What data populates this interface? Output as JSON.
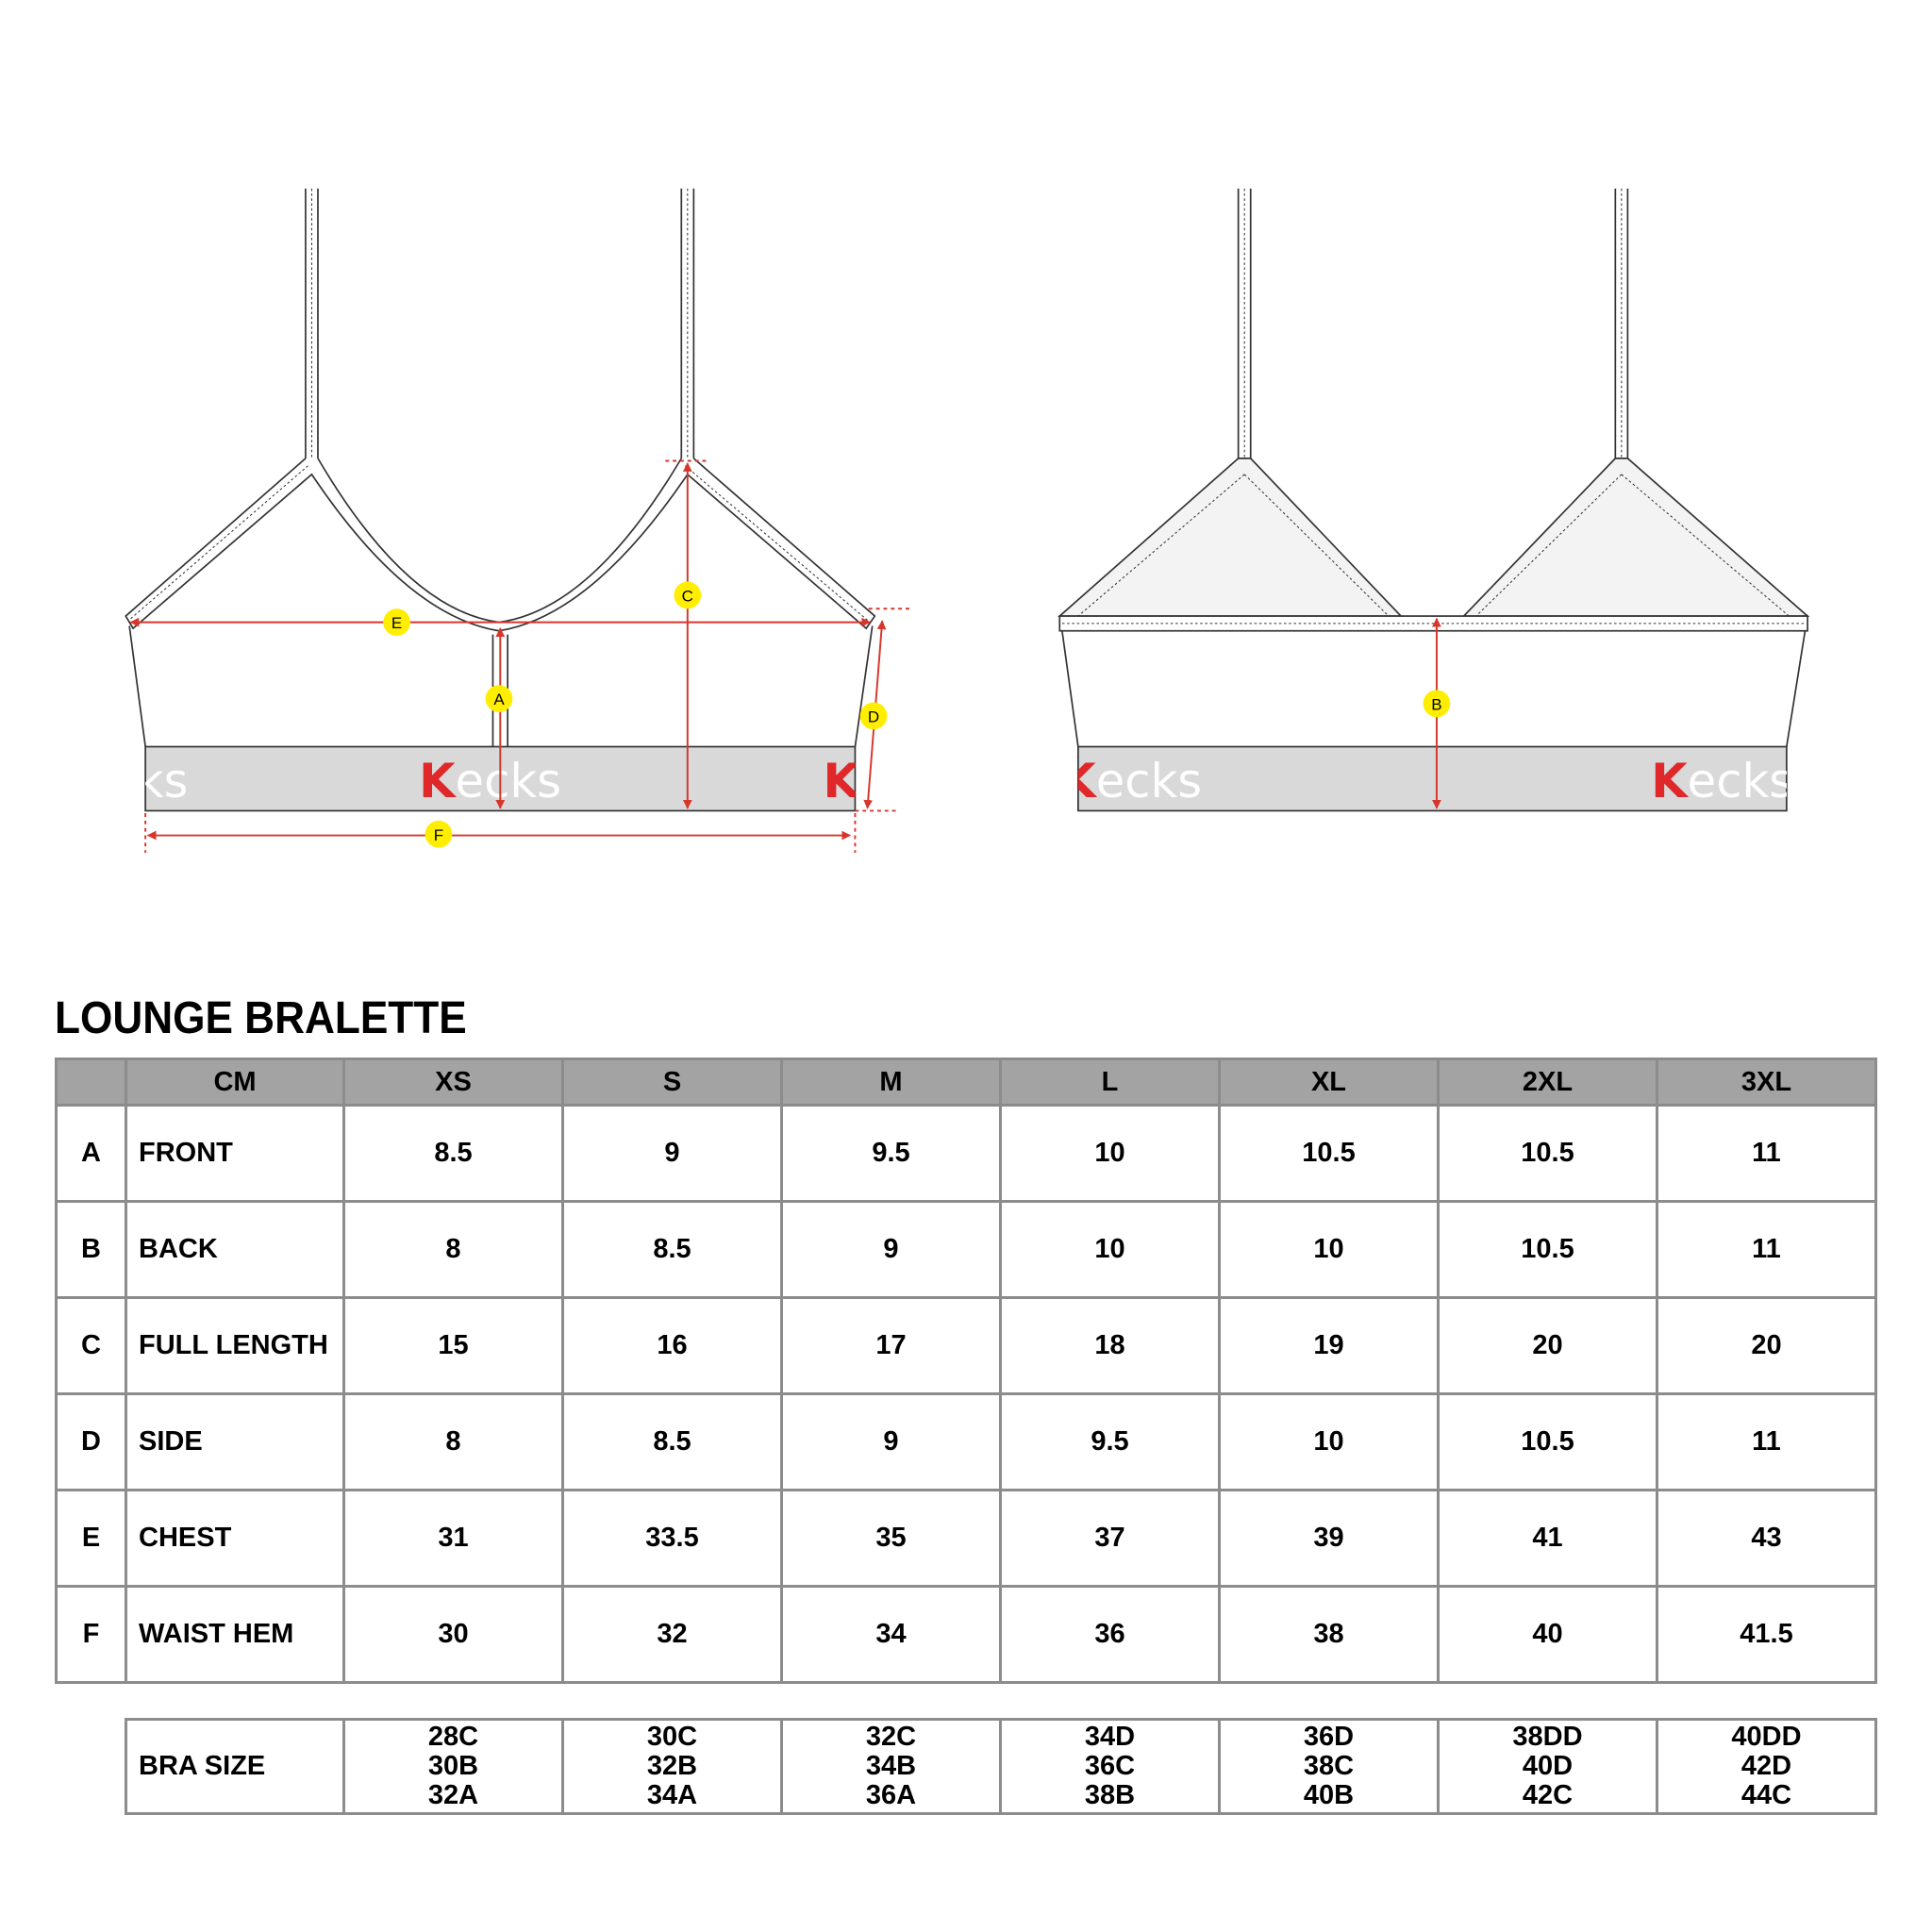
{
  "title": "LOUNGE BRALETTE",
  "brand_logo": "Kecks",
  "colors": {
    "dimension_line": "#d7362c",
    "marker": "#ffee00",
    "band": "#d9d9d9",
    "header": "#a3a3a3",
    "logo_accent": "#e0282a"
  },
  "diagram": {
    "front_markers": [
      "E",
      "A",
      "C",
      "D",
      "F"
    ],
    "back_markers": [
      "B"
    ]
  },
  "table": {
    "unit_label": "CM",
    "sizes": [
      "XS",
      "S",
      "M",
      "L",
      "XL",
      "2XL",
      "3XL"
    ],
    "rows": [
      {
        "code": "A",
        "name": "FRONT",
        "values": [
          "8.5",
          "9",
          "9.5",
          "10",
          "10.5",
          "10.5",
          "11"
        ]
      },
      {
        "code": "B",
        "name": "BACK",
        "values": [
          "8",
          "8.5",
          "9",
          "10",
          "10",
          "10.5",
          "11"
        ]
      },
      {
        "code": "C",
        "name": "FULL LENGTH",
        "values": [
          "15",
          "16",
          "17",
          "18",
          "19",
          "20",
          "20"
        ]
      },
      {
        "code": "D",
        "name": "SIDE",
        "values": [
          "8",
          "8.5",
          "9",
          "9.5",
          "10",
          "10.5",
          "11"
        ]
      },
      {
        "code": "E",
        "name": "CHEST",
        "values": [
          "31",
          "33.5",
          "35",
          "37",
          "39",
          "41",
          "43"
        ]
      },
      {
        "code": "F",
        "name": "WAIST HEM",
        "values": [
          "30",
          "32",
          "34",
          "36",
          "38",
          "40",
          "41.5"
        ]
      }
    ]
  },
  "bra_size": {
    "label": "BRA SIZE",
    "values": [
      [
        "28C",
        "30B",
        "32A"
      ],
      [
        "30C",
        "32B",
        "34A"
      ],
      [
        "32C",
        "34B",
        "36A"
      ],
      [
        "34D",
        "36C",
        "38B"
      ],
      [
        "36D",
        "38C",
        "40B"
      ],
      [
        "38DD",
        "40D",
        "42C"
      ],
      [
        "40DD",
        "42D",
        "44C"
      ]
    ]
  }
}
